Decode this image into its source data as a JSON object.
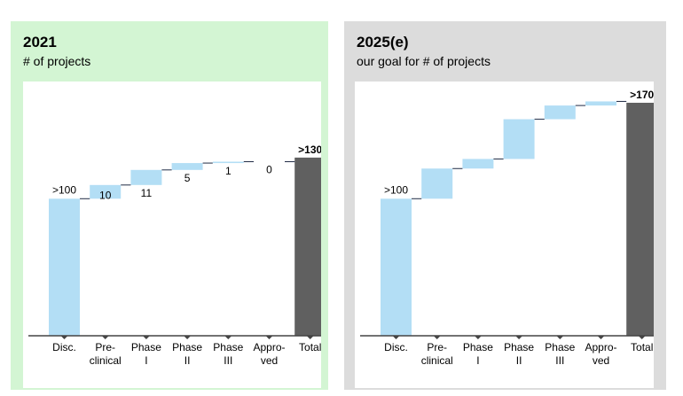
{
  "colors": {
    "bar": "#b3def5",
    "total": "#606060",
    "connector": "#1f2a44",
    "axis": "#444444"
  },
  "chart_data": [
    {
      "type": "bar",
      "subtype": "waterfall",
      "title": "2021",
      "subtitle": "# of projects",
      "categories": [
        "Disc.",
        "Pre-clinical",
        "Phase I",
        "Phase II",
        "Phase III",
        "Appro-ved",
        "Total"
      ],
      "tick_lines": [
        [
          "Disc."
        ],
        [
          "Pre-",
          "clinical"
        ],
        [
          "Phase",
          "I"
        ],
        [
          "Phase",
          "II"
        ],
        [
          "Phase",
          "III"
        ],
        [
          "Appro-",
          "ved"
        ],
        [
          "Total"
        ]
      ],
      "values": [
        100,
        10,
        11,
        5,
        1,
        0,
        130
      ],
      "data_labels": [
        ">100",
        "10",
        "11",
        "5",
        "1",
        "0",
        ">130"
      ],
      "ylim": [
        0,
        170
      ]
    },
    {
      "type": "bar",
      "subtype": "waterfall",
      "title": "2025(e)",
      "subtitle": "our goal for # of projects",
      "categories": [
        "Disc.",
        "Pre-clinical",
        "Phase I",
        "Phase II",
        "Phase III",
        "Appro-ved",
        "Total"
      ],
      "tick_lines": [
        [
          "Disc."
        ],
        [
          "Pre-",
          "clinical"
        ],
        [
          "Phase",
          "I"
        ],
        [
          "Phase",
          "II"
        ],
        [
          "Phase",
          "III"
        ],
        [
          "Appro-",
          "ved"
        ],
        [
          "Total"
        ]
      ],
      "values": [
        100,
        22,
        7,
        29,
        10,
        3,
        170
      ],
      "data_labels": [
        ">100",
        "",
        "",
        "",
        "",
        "",
        ">170"
      ],
      "ylim": [
        0,
        170
      ]
    }
  ]
}
